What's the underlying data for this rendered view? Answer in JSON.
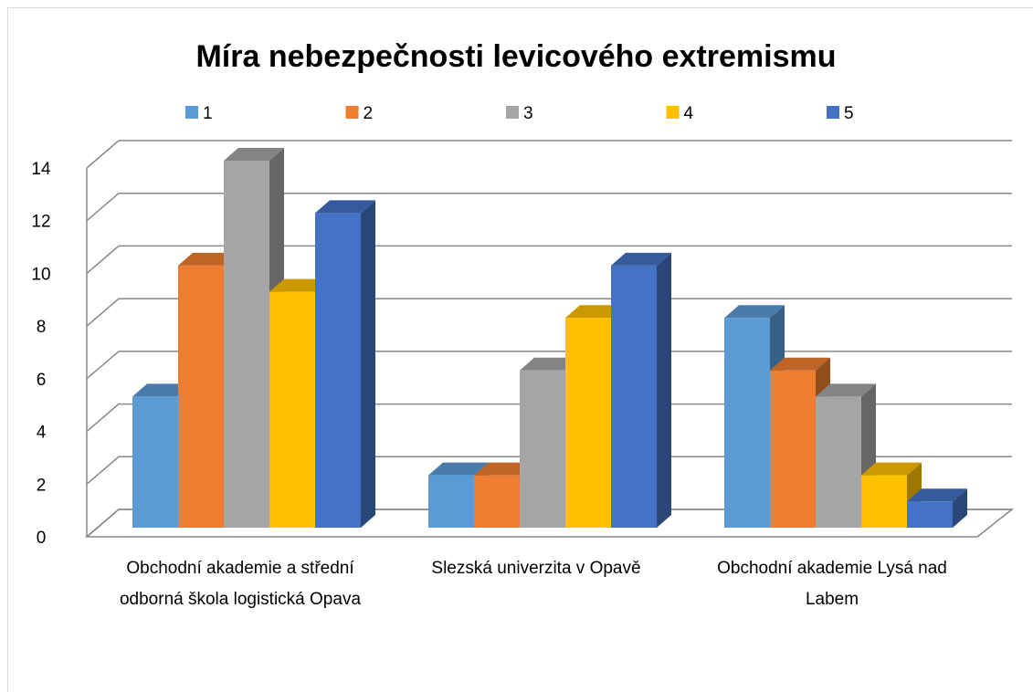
{
  "chart_data": {
    "type": "bar3d",
    "title": "Míra nebezpečnosti levicového extremismu",
    "categories": [
      "Obchodní akademie a střední odborná škola logistická Opava",
      "Slezská univerzita v Opavě",
      "Obchodní akademie Lysá nad Labem"
    ],
    "series": [
      {
        "name": "1",
        "color": "#5b9bd5",
        "values": [
          5,
          2,
          8
        ]
      },
      {
        "name": "2",
        "color": "#ed7d31",
        "values": [
          10,
          2,
          6
        ]
      },
      {
        "name": "3",
        "color": "#a5a5a5",
        "values": [
          14,
          6,
          5
        ]
      },
      {
        "name": "4",
        "color": "#ffc000",
        "values": [
          9,
          8,
          2
        ]
      },
      {
        "name": "5",
        "color": "#4472c4",
        "values": [
          12,
          10,
          1
        ]
      }
    ],
    "ylim": [
      0,
      14
    ],
    "yticks": [
      0,
      2,
      4,
      6,
      8,
      10,
      12,
      14
    ],
    "grid": true,
    "legend": "top"
  }
}
